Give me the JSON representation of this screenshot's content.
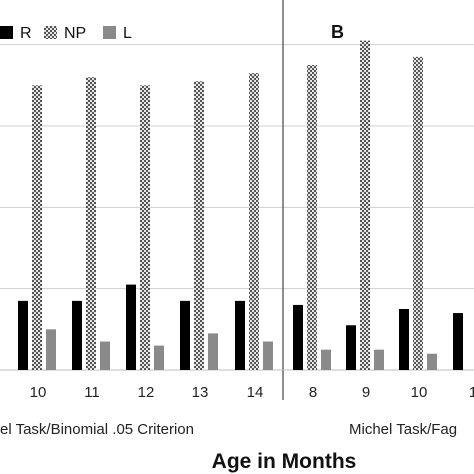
{
  "chart_data": {
    "type": "bar",
    "xlabel": "Age in Months",
    "ylim": [
      0,
      0.9
    ],
    "legend": {
      "placement": "top-left",
      "entries": [
        {
          "name": "R",
          "color": "#000000",
          "pattern": "solid"
        },
        {
          "name": "NP",
          "color": "#9a9a9a",
          "pattern": "checker"
        },
        {
          "name": "L",
          "color": "#8a8a8a",
          "pattern": "solid"
        }
      ]
    },
    "panels": [
      {
        "panel_label": "",
        "group_label": "el Task/Binomial .05 Criterion",
        "categories": [
          "10",
          "11",
          "12",
          "13",
          "14"
        ],
        "series": [
          {
            "name": "R",
            "values": [
              0.17,
              0.17,
              0.21,
              0.17,
              0.17
            ]
          },
          {
            "name": "NP",
            "values": [
              0.7,
              0.72,
              0.7,
              0.71,
              0.73
            ]
          },
          {
            "name": "L",
            "values": [
              0.1,
              0.07,
              0.06,
              0.09,
              0.07
            ]
          }
        ]
      },
      {
        "panel_label": "B",
        "group_label": "Michel Task/Fag",
        "categories": [
          "8",
          "9",
          "10",
          "1"
        ],
        "series": [
          {
            "name": "R",
            "values": [
              0.16,
              0.11,
              0.15,
              0.14
            ]
          },
          {
            "name": "NP",
            "values": [
              0.75,
              0.81,
              0.77,
              null
            ]
          },
          {
            "name": "L",
            "values": [
              0.05,
              0.05,
              0.04,
              null
            ]
          }
        ]
      }
    ]
  }
}
